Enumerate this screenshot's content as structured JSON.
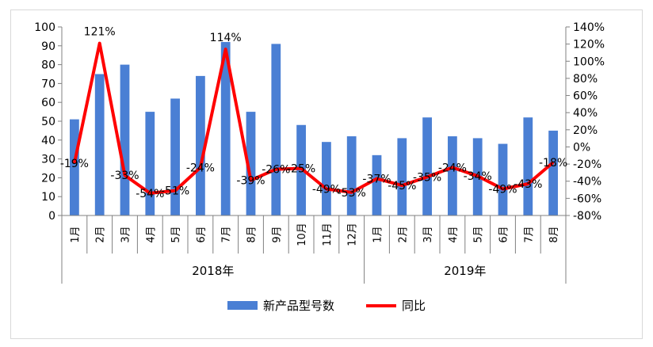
{
  "chart_data": {
    "type": "bar",
    "title": "",
    "categories": [
      "1月",
      "2月",
      "3月",
      "4月",
      "5月",
      "6月",
      "7月",
      "8月",
      "9月",
      "10月",
      "11月",
      "12月",
      "1月",
      "2月",
      "3月",
      "4月",
      "5月",
      "6月",
      "7月",
      "8月"
    ],
    "groups": [
      {
        "label": "2018年",
        "count": 12
      },
      {
        "label": "2019年",
        "count": 8
      }
    ],
    "series": [
      {
        "name": "新产品型号数",
        "type": "bar",
        "axis": "left",
        "color": "#4a7fd4",
        "values": [
          51,
          75,
          80,
          55,
          62,
          74,
          92,
          55,
          91,
          48,
          39,
          42,
          32,
          41,
          52,
          42,
          41,
          38,
          52,
          45
        ]
      },
      {
        "name": "同比",
        "type": "line",
        "axis": "right",
        "color": "#ff0000",
        "values": [
          -19,
          121,
          -33,
          -54,
          -51,
          -24,
          114,
          -39,
          -26,
          -25,
          -49,
          -53,
          -37,
          -45,
          -35,
          -24,
          -34,
          -49,
          -43,
          -18
        ],
        "labels": [
          "-19%",
          "121%",
          "-33%",
          "-54%",
          "-51%",
          "-24%",
          "114%",
          "-39%",
          "-26%",
          "-25%",
          "-49%",
          "-53%",
          "-37%",
          "-45%",
          "-35%",
          "-24%",
          "-34%",
          "-49%",
          "-43%",
          "-18%"
        ]
      }
    ],
    "y_left": {
      "min": 0,
      "max": 100,
      "step": 10,
      "ticks": [
        "0",
        "10",
        "20",
        "30",
        "40",
        "50",
        "60",
        "70",
        "80",
        "90",
        "100"
      ]
    },
    "y_right": {
      "min": -80,
      "max": 140,
      "step": 20,
      "ticks": [
        "-80%",
        "-60%",
        "-40%",
        "-20%",
        "0%",
        "20%",
        "40%",
        "60%",
        "80%",
        "100%",
        "120%",
        "140%"
      ]
    },
    "legend_position": "bottom",
    "grid": false
  }
}
